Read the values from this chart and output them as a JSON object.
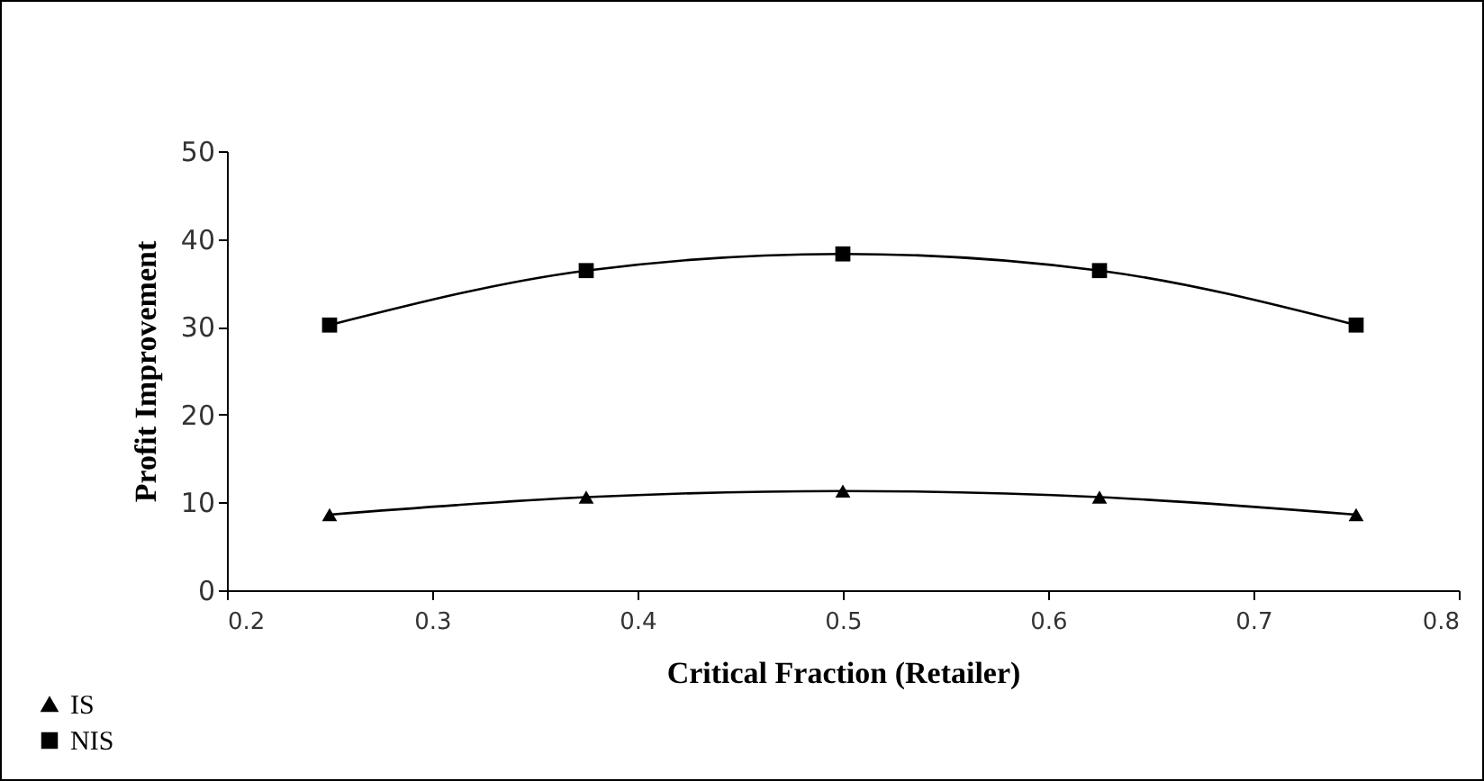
{
  "chart_data": {
    "type": "line",
    "xlabel": "Critical Fraction (Retailer)",
    "ylabel": "Profit Improvement",
    "x": [
      0.25,
      0.375,
      0.5,
      0.625,
      0.75
    ],
    "series": [
      {
        "name": "IS",
        "color": "#000000",
        "marker": "triangle",
        "values": [
          8.6,
          10.6,
          11.3,
          10.6,
          8.6
        ]
      },
      {
        "name": "NIS",
        "color": "#000000",
        "marker": "square",
        "values": [
          30.2,
          36.4,
          38.3,
          36.4,
          30.2
        ]
      }
    ],
    "xlim": [
      0.2,
      0.8
    ],
    "xticks": [
      0.2,
      0.3,
      0.4,
      0.5,
      0.6,
      0.7,
      0.8
    ],
    "ylim": [
      0,
      50
    ],
    "yticks": [
      0,
      10,
      20,
      30,
      40,
      50
    ],
    "grid": false,
    "legend": "bottom left",
    "line_style": "solid"
  }
}
